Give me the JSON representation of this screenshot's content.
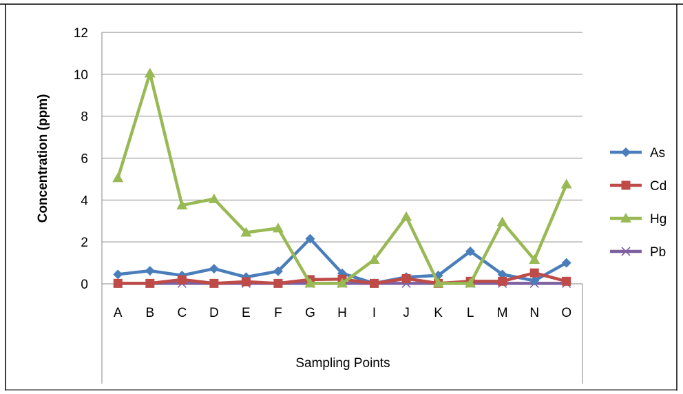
{
  "chart_data": {
    "type": "line",
    "title": "",
    "xlabel": "Sampling Points",
    "ylabel": "Concentration (ppm)",
    "ylim": [
      0,
      12
    ],
    "yticks": [
      0,
      2,
      4,
      6,
      8,
      10,
      12
    ],
    "grid": "horizontal",
    "legend_position": "right",
    "categories": [
      "A",
      "B",
      "C",
      "D",
      "E",
      "F",
      "G",
      "H",
      "I",
      "J",
      "K",
      "L",
      "M",
      "N",
      "O"
    ],
    "series": [
      {
        "name": "As",
        "color": "#4A7EBB",
        "marker": "diamond",
        "values": [
          0.45,
          0.62,
          0.4,
          0.72,
          0.32,
          0.6,
          2.15,
          0.5,
          0.02,
          0.32,
          0.4,
          1.55,
          0.45,
          0.15,
          1.0
        ]
      },
      {
        "name": "Cd",
        "color": "#BE4B48",
        "marker": "square",
        "values": [
          0.02,
          0.02,
          0.2,
          0.02,
          0.1,
          0.02,
          0.2,
          0.22,
          0.02,
          0.25,
          0.02,
          0.12,
          0.12,
          0.52,
          0.12
        ]
      },
      {
        "name": "Hg",
        "color": "#98B954",
        "marker": "triangle",
        "values": [
          5.05,
          10.05,
          3.75,
          4.05,
          2.45,
          2.65,
          0.02,
          0.02,
          1.15,
          3.2,
          0.02,
          0.02,
          2.95,
          1.15,
          4.75
        ]
      },
      {
        "name": "Pb",
        "color": "#7D60A0",
        "marker": "x",
        "values": [
          0.02,
          0.02,
          0.02,
          0.02,
          0.02,
          0.02,
          0.02,
          0.02,
          0.02,
          0.02,
          0.02,
          0.02,
          0.02,
          0.02,
          0.02
        ]
      }
    ]
  }
}
